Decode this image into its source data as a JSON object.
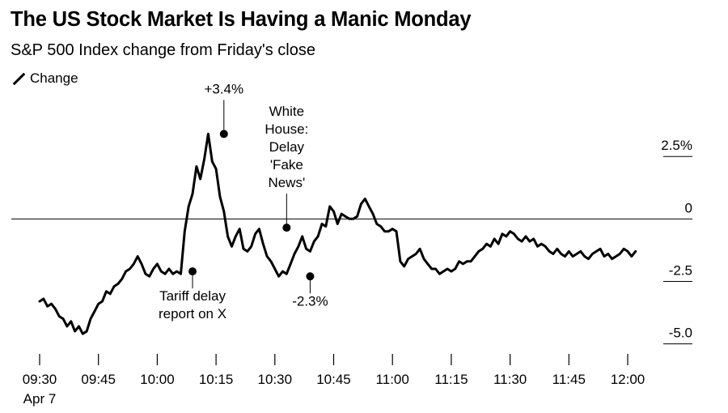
{
  "title": "The US Stock Market Is Having a Manic Monday",
  "subtitle": "S&P 500 Index change from Friday's close",
  "legend": {
    "label": "Change"
  },
  "chart_data": {
    "type": "line",
    "ylim": [
      -5.5,
      3.9
    ],
    "xlim": [
      0,
      150
    ],
    "yticks": [
      {
        "value": 2.5,
        "label": "2.5%"
      },
      {
        "value": 0,
        "label": "0"
      },
      {
        "value": -2.5,
        "label": "-2.5"
      },
      {
        "value": -5.0,
        "label": "-5.0"
      }
    ],
    "xticks": [
      {
        "value": 0,
        "label": "09:30",
        "sublabel": "Apr 7"
      },
      {
        "value": 15,
        "label": "09:45"
      },
      {
        "value": 30,
        "label": "10:00"
      },
      {
        "value": 45,
        "label": "10:15"
      },
      {
        "value": 60,
        "label": "10:30"
      },
      {
        "value": 75,
        "label": "10:45"
      },
      {
        "value": 90,
        "label": "11:00"
      },
      {
        "value": 105,
        "label": "11:15"
      },
      {
        "value": 120,
        "label": "11:30"
      },
      {
        "value": 135,
        "label": "11:45"
      },
      {
        "value": 150,
        "label": "12:00"
      }
    ],
    "series": [
      {
        "name": "Change",
        "x": [
          0,
          1,
          2,
          3,
          4,
          5,
          6,
          7,
          8,
          9,
          10,
          11,
          12,
          13,
          14,
          15,
          16,
          17,
          18,
          19,
          20,
          21,
          22,
          23,
          24,
          25,
          26,
          27,
          28,
          29,
          30,
          31,
          32,
          33,
          34,
          35,
          36,
          37,
          38,
          39,
          40,
          41,
          42,
          43,
          44,
          45,
          46,
          47,
          48,
          49,
          50,
          51,
          52,
          53,
          54,
          55,
          56,
          57,
          58,
          59,
          60,
          61,
          62,
          63,
          64,
          65,
          66,
          67,
          68,
          69,
          70,
          71,
          72,
          73,
          74,
          75,
          76,
          77,
          78,
          79,
          80,
          81,
          82,
          83,
          84,
          85,
          86,
          87,
          88,
          89,
          90,
          91,
          92,
          93,
          94,
          95,
          96,
          97,
          98,
          99,
          100,
          101,
          102,
          103,
          104,
          105,
          106,
          107,
          108,
          109,
          110,
          111,
          112,
          113,
          114,
          115,
          116,
          117,
          118,
          119,
          120,
          121,
          122,
          123,
          124,
          125,
          126,
          127,
          128,
          129,
          130,
          131,
          132,
          133,
          134,
          135,
          136,
          137,
          138,
          139,
          140,
          141,
          142,
          143,
          144,
          145,
          146,
          147,
          148,
          149,
          150,
          151,
          152
        ],
        "values": [
          -3.3,
          -3.2,
          -3.5,
          -3.4,
          -3.6,
          -3.9,
          -4.0,
          -4.3,
          -4.1,
          -4.5,
          -4.3,
          -4.6,
          -4.5,
          -4.0,
          -3.7,
          -3.4,
          -3.3,
          -2.9,
          -3.0,
          -2.7,
          -2.6,
          -2.4,
          -2.1,
          -2.0,
          -1.8,
          -1.5,
          -1.8,
          -2.2,
          -2.3,
          -2.0,
          -1.8,
          -2.1,
          -2.2,
          -2.0,
          -2.2,
          -2.1,
          -2.2,
          -0.5,
          0.5,
          1.0,
          2.1,
          1.6,
          2.4,
          3.4,
          2.3,
          2.0,
          0.9,
          0.3,
          -0.7,
          -1.1,
          -0.7,
          -0.4,
          -1.2,
          -1.3,
          -1.1,
          -0.6,
          -0.4,
          -1.0,
          -1.5,
          -1.7,
          -2.0,
          -2.3,
          -2.1,
          -2.2,
          -1.8,
          -1.4,
          -1.1,
          -0.7,
          -1.2,
          -1.3,
          -0.9,
          -0.7,
          -0.2,
          -0.3,
          0.5,
          0.3,
          -0.2,
          0.2,
          0.1,
          0.0,
          0.0,
          0.1,
          0.6,
          0.8,
          0.5,
          0.2,
          -0.2,
          -0.3,
          -0.5,
          -0.5,
          -0.4,
          -0.5,
          -1.7,
          -1.9,
          -1.6,
          -1.5,
          -1.4,
          -1.2,
          -1.6,
          -1.8,
          -2.0,
          -2.0,
          -2.2,
          -2.1,
          -2.0,
          -2.1,
          -2.0,
          -1.7,
          -1.8,
          -1.7,
          -1.7,
          -1.5,
          -1.3,
          -1.2,
          -1.0,
          -1.1,
          -0.8,
          -1.0,
          -0.6,
          -0.7,
          -0.5,
          -0.6,
          -0.8,
          -0.9,
          -0.7,
          -0.9,
          -0.8,
          -1.1,
          -1.0,
          -1.1,
          -1.3,
          -1.4,
          -1.2,
          -1.4,
          -1.5,
          -1.3,
          -1.5,
          -1.4,
          -1.3,
          -1.5,
          -1.6,
          -1.4,
          -1.3,
          -1.2,
          -1.5,
          -1.4,
          -1.6,
          -1.5,
          -1.4,
          -1.2,
          -1.3,
          -1.5,
          -1.3
        ]
      }
    ],
    "markers": [
      {
        "x": 39,
        "value": -2.1,
        "label": [
          "Tariff delay",
          "report on X"
        ],
        "position": "below"
      },
      {
        "x": 47,
        "value": 3.4,
        "label": [
          "+3.4%"
        ],
        "position": "above"
      },
      {
        "x": 63,
        "value": -0.35,
        "label": [
          "White",
          "House:",
          "Delay",
          "'Fake",
          "News'"
        ],
        "position": "above"
      },
      {
        "x": 69,
        "value": -2.3,
        "label": [
          "-2.3%"
        ],
        "position": "below"
      }
    ]
  }
}
